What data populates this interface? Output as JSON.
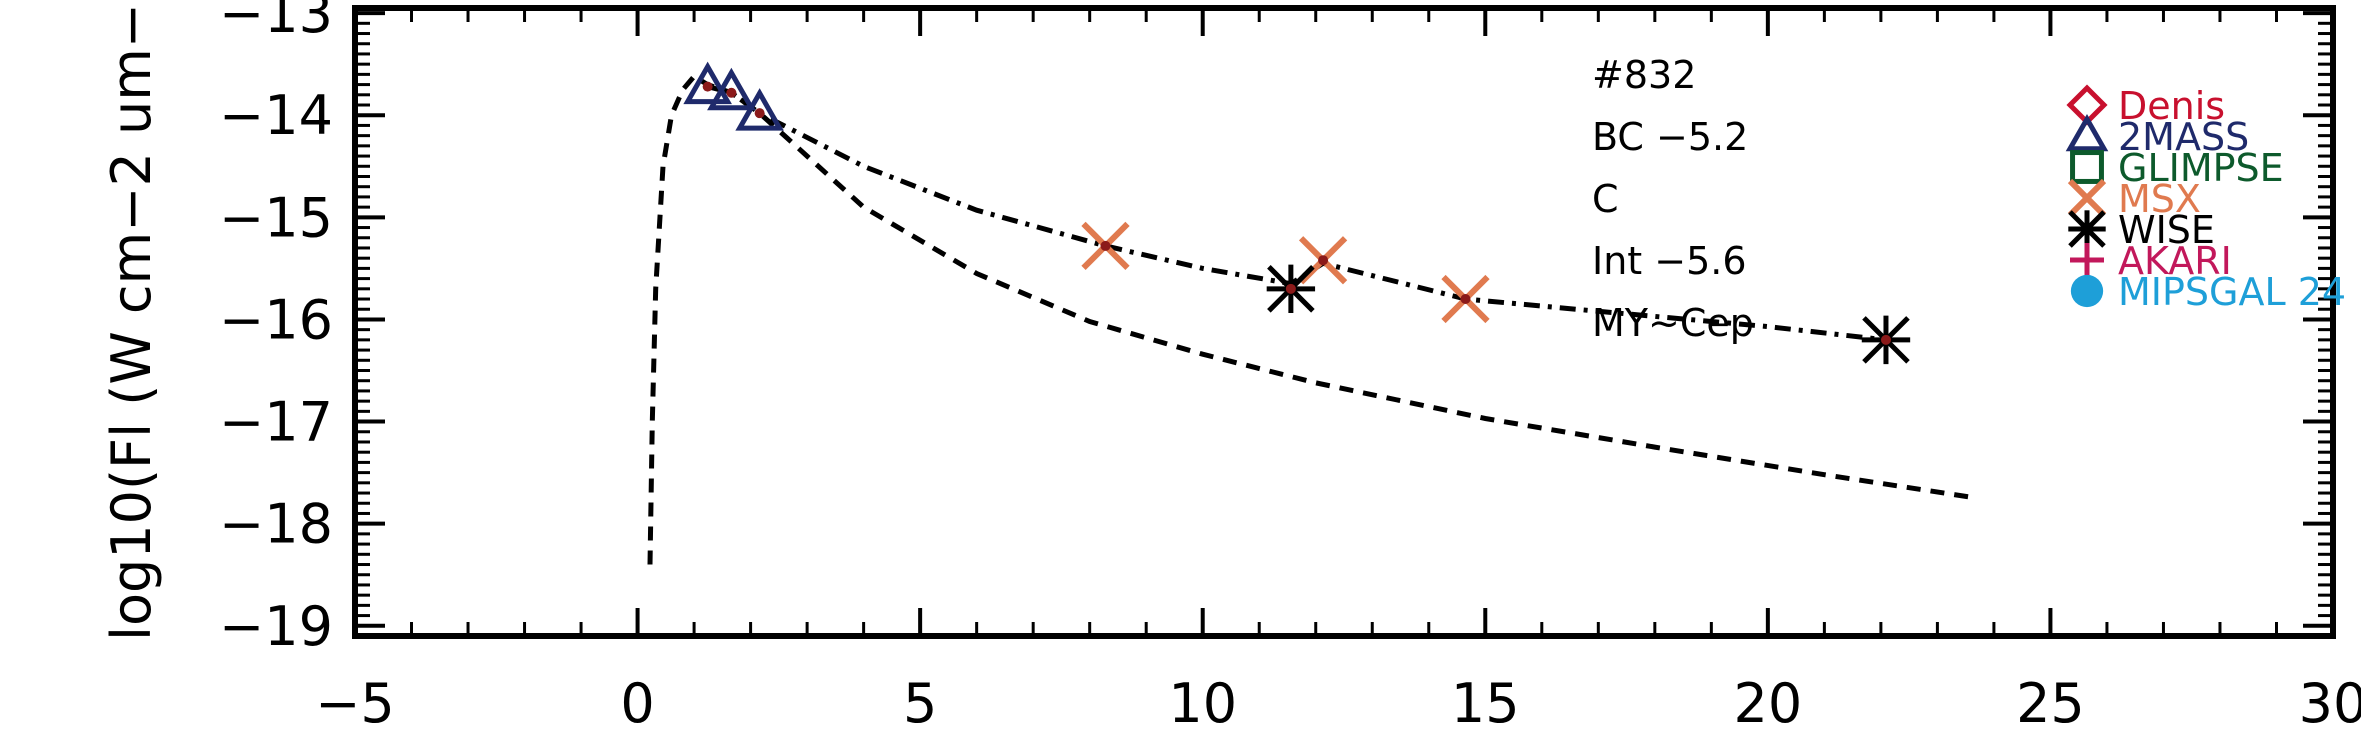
{
  "chart_data": {
    "type": "scatter",
    "xlim": [
      -5,
      30
    ],
    "ylim": [
      -19.1,
      -12.95
    ],
    "ylabel": "log10(Fl (W cm−2 um−",
    "xlabel": "",
    "x_ticks": [
      -5,
      0,
      5,
      10,
      15,
      20,
      25,
      30
    ],
    "x_tick_labels": [
      "−5",
      "0",
      "5",
      "10",
      "15",
      "20",
      "25",
      "30"
    ],
    "y_ticks": [
      -19,
      -18,
      -17,
      -16,
      -15,
      -14,
      -13
    ],
    "y_tick_labels": [
      "−19",
      "−18",
      "−17",
      "−16",
      "−15",
      "−14",
      "−13"
    ],
    "annotations": [
      "#832",
      "BC  −5.2",
      "C",
      "Int  −5.6",
      "MY~Cep"
    ],
    "legend_position": "top-right",
    "legend": [
      {
        "name": "Denis",
        "marker": "diamond",
        "color": "#c8102e"
      },
      {
        "name": "2MASS",
        "marker": "triangle",
        "color": "#1f2a6b"
      },
      {
        "name": "GLIMPSE",
        "marker": "square",
        "color": "#0d5a2c"
      },
      {
        "name": "MSX",
        "marker": "x",
        "color": "#e07a4f"
      },
      {
        "name": "WISE",
        "marker": "asterisk",
        "color": "#000000"
      },
      {
        "name": "AKARI",
        "marker": "plus",
        "color": "#c2185b"
      },
      {
        "name": "MIPSGAL 24",
        "marker": "circle",
        "color": "#1e9fd8"
      }
    ],
    "series": [
      {
        "name": "2MASS",
        "marker": "triangle",
        "color": "#1f2a6b",
        "x": [
          1.24,
          1.66,
          2.16
        ],
        "y": [
          -13.72,
          -13.78,
          -13.98
        ]
      },
      {
        "name": "MSX",
        "marker": "x",
        "color": "#e07a4f",
        "x": [
          8.28,
          12.13,
          14.65
        ],
        "y": [
          -15.28,
          -15.42,
          -15.8
        ]
      },
      {
        "name": "WISE",
        "marker": "asterisk",
        "color": "#000000",
        "x": [
          11.56,
          22.09
        ],
        "y": [
          -15.7,
          -16.2
        ]
      },
      {
        "name": "",
        "style": "dashdot",
        "color": "#000000",
        "x": [
          1.24,
          1.66,
          2.16,
          4.0,
          6.0,
          8.28,
          10.0,
          11.56,
          12.13,
          14.65,
          17.0,
          20.0,
          22.09
        ],
        "y": [
          -13.72,
          -13.78,
          -13.98,
          -14.5,
          -14.93,
          -15.28,
          -15.5,
          -15.65,
          -15.45,
          -15.8,
          -15.92,
          -16.07,
          -16.2
        ]
      },
      {
        "name": "",
        "style": "dashed",
        "color": "#000000",
        "x": [
          0.22,
          0.26,
          0.32,
          0.45,
          0.6,
          0.8,
          1.0,
          1.24,
          1.66,
          2.16,
          3.0,
          4.0,
          6.0,
          8.0,
          10.0,
          12.0,
          15.0,
          18.0,
          21.0,
          23.7
        ],
        "y": [
          -18.4,
          -17.0,
          -15.7,
          -14.5,
          -14.0,
          -13.75,
          -13.62,
          -13.7,
          -13.78,
          -13.98,
          -14.4,
          -14.9,
          -15.55,
          -16.02,
          -16.34,
          -16.62,
          -16.97,
          -17.25,
          -17.52,
          -17.75
        ]
      }
    ]
  }
}
